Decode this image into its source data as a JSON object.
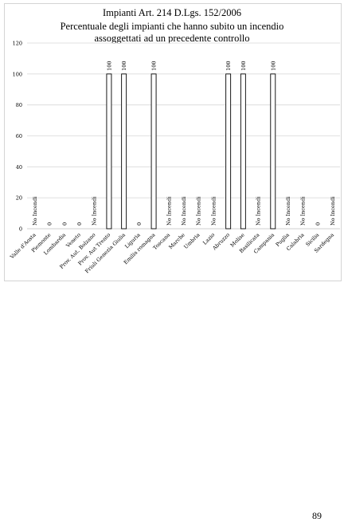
{
  "chart_data": {
    "type": "bar",
    "title": "Impianti Art. 214 D.Lgs. 152/2006",
    "subtitle": "Percentuale degli impianti che hanno subito un incendio assoggettati ad un precedente controllo",
    "title_lines": [
      "Impianti Art. 214 D.Lgs. 152/2006",
      "Percentuale degli impianti che hanno subito un incendio",
      "assoggettati ad un precedente controllo"
    ],
    "xlabel": "",
    "ylabel": "",
    "ylim": [
      0,
      120
    ],
    "yticks": [
      "0",
      "20",
      "40",
      "60",
      "80",
      "100",
      "120"
    ],
    "grid": true,
    "categories": [
      "Valle d'Aosta",
      "Piemonte",
      "Lombardia",
      "Veneto",
      "Prov. Aut. Bolzano",
      "Prov. Aut Trento",
      "Friuli Genezia Giulia",
      "Liguria",
      "Emilia romagna",
      "Toscana",
      "Marche",
      "Umbria",
      "Lazio",
      "Abruzzo",
      "Molise",
      "Basilicata",
      "Campania",
      "Puglia",
      "Calabria",
      "Sicilia",
      "Sardegna"
    ],
    "values": [
      null,
      0,
      0,
      0,
      null,
      100,
      100,
      0,
      100,
      null,
      null,
      null,
      null,
      100,
      100,
      null,
      100,
      null,
      null,
      0,
      null
    ],
    "data_labels": [
      "No Incendi",
      "0",
      "0",
      "0",
      "No Incendi",
      "100",
      "100",
      "0",
      "100",
      "No Incendi",
      "No Incendi",
      "No Incendi",
      "No Incendi",
      "100",
      "100",
      "No Incendi",
      "100",
      "No Incendi",
      "No Incendi",
      "0",
      "No Incendi"
    ],
    "colors": {
      "bar_fill": "#ffffff",
      "bar_stroke": "#000000",
      "grid": "#d9d9d9"
    }
  },
  "page": {
    "number": "89"
  }
}
